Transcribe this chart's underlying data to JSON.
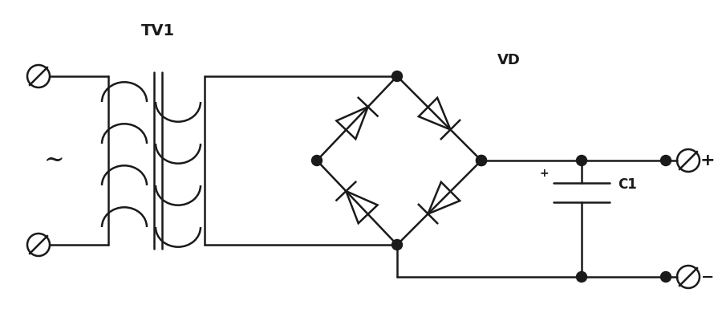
{
  "bg_color": "#ffffff",
  "line_color": "#1a1a1a",
  "line_width": 1.8,
  "title": "TV1",
  "label_VD": "VD",
  "label_C1": "C1",
  "label_plus": "+",
  "label_minus": "−"
}
